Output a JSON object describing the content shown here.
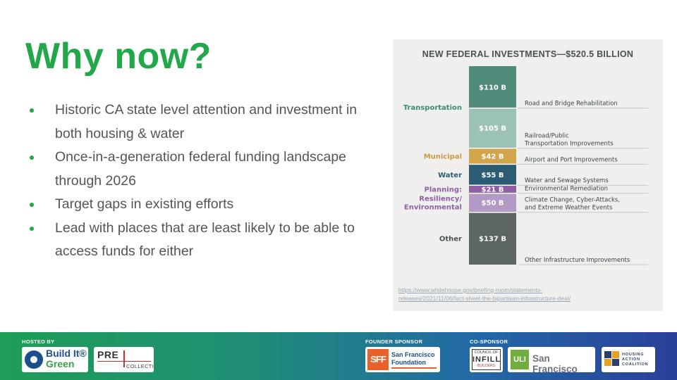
{
  "slide": {
    "title": "Why now?",
    "bullets": [
      "Historic CA state level attention and investment in both housing & water",
      "Once-in-a-generation federal funding landscape through 2026",
      "Target gaps in existing efforts",
      "Lead with places that are least likely to be able to access funds for either"
    ]
  },
  "chart_data": {
    "type": "bar",
    "stacked": true,
    "title": "NEW FEDERAL INVESTMENTS—$520.5 BILLION",
    "unit": "B",
    "segments": [
      {
        "value": 110,
        "label": "$110 B",
        "description": "Road and Bridge Rehabilitation",
        "color": "#4f8a7a"
      },
      {
        "value": 105,
        "label": "$105 B",
        "description_lines": [
          "Railroad/Public",
          "Transportation Improvements"
        ],
        "color": "#9cc1b5"
      },
      {
        "value": 42,
        "label": "$42 B",
        "description": "Airport and Port Improvements",
        "color": "#d2a44b"
      },
      {
        "value": 55,
        "label": "$55 B",
        "description": "Water and Sewage Systems",
        "color": "#2b5c73"
      },
      {
        "value": 21,
        "label": "$21 B",
        "description": "Environmental Remediation",
        "color": "#8f5fa6"
      },
      {
        "value": 50,
        "label": "$50 B",
        "description_lines": [
          "Climate Change, Cyber-Attacks,",
          "and Extreme Weather Events"
        ],
        "color": "#b29ac4"
      },
      {
        "value": 137,
        "label": "$137 B",
        "description": "Other Infrastructure Improvements",
        "color": "#5b6564"
      }
    ],
    "categories": [
      {
        "name": "Transportation",
        "color": "#3c8a6f",
        "segments": [
          0,
          1
        ]
      },
      {
        "name": "Municipal",
        "color": "#c89a3c",
        "segments": [
          2
        ]
      },
      {
        "name": "Water",
        "color": "#2b5c73",
        "segments": [
          3
        ]
      },
      {
        "name": "Planning:",
        "color": "#8f5fa6",
        "segments": [
          4
        ]
      },
      {
        "name_lines": [
          "Resiliency/",
          "Environmental"
        ],
        "color": "#8f5fa6",
        "segments": [
          5
        ]
      },
      {
        "name": "Other",
        "color": "#4a4f55",
        "segments": [
          6
        ]
      }
    ],
    "source": "https://www.whitehouse.gov/briefing-room/statements-releases/2021/11/06/fact-sheet-the-bipartisan-infrastructure-deal/",
    "source_lines": [
      "https://www.whitehouse.gov/briefing-room/statements-",
      "releases/2021/11/06/fact-sheet-the-bipartisan-infrastructure-deal/"
    ]
  },
  "footer": {
    "hosted_by_label": "HOSTED BY",
    "founder_sponsor_label": "FOUNDER SPONSOR",
    "co_sponsor_label": "CO-SPONSOR",
    "logos": {
      "build_it_green": {
        "line1": "Build It®",
        "line2": "Green"
      },
      "pre_collective": {
        "top": "PRE",
        "bottom": "COLLECTIVE"
      },
      "sf_foundation": {
        "mark": "SFF",
        "line1": "San Francisco",
        "line2": "Foundation"
      },
      "council_infill": {
        "line1": "COUNCIL OF",
        "big": "INFILL",
        "line2": "BUILDERS"
      },
      "uli": {
        "mark": "ULI",
        "text": "San Francisco"
      },
      "housing_action": {
        "line1": "HOUSING",
        "line2": "ACTION",
        "line3": "COALITION"
      }
    }
  },
  "colors": {
    "accent_green": "#22a84a",
    "body_text": "#555555",
    "chart_panel_bg": "#eff0ee",
    "footer_gradient_start": "#1e9e56",
    "footer_gradient_end": "#2a3f99"
  }
}
